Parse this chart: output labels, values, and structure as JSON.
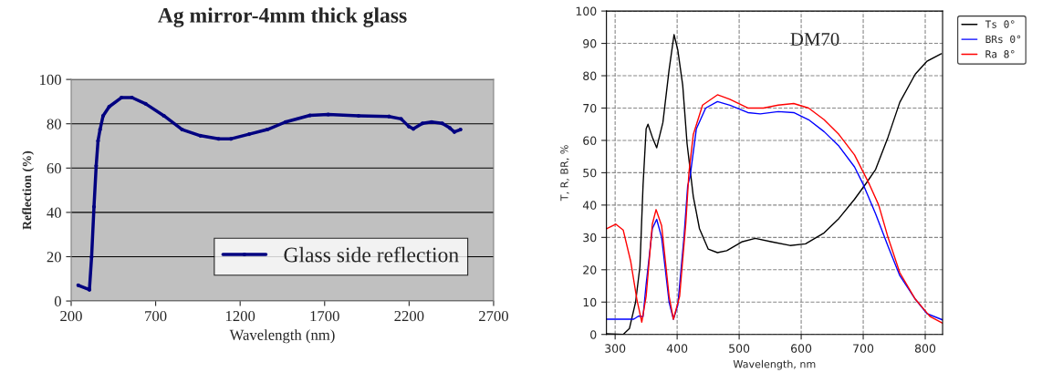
{
  "chart_data": [
    {
      "type": "line",
      "title": "Ag mirror-4mm thick glass",
      "xlabel": "Wavelength (nm)",
      "ylabel": "Reflection (%)",
      "xlim": [
        200,
        2700
      ],
      "xticks": [
        200,
        700,
        1200,
        1700,
        2200,
        2700
      ],
      "ylim": [
        0,
        100
      ],
      "yticks": [
        0,
        20,
        40,
        60,
        80,
        100
      ],
      "grid": "y",
      "legend": "bottom right",
      "marker": "circle",
      "line_style": "solid",
      "series": [
        {
          "name": "Glass side reflection",
          "color": "#000080",
          "x": [
            242,
            308,
            321,
            335,
            348,
            359,
            371,
            389,
            425,
            497,
            560,
            641,
            749,
            857,
            965,
            1073,
            1145,
            1253,
            1361,
            1469,
            1613,
            1721,
            1901,
            2081,
            2153,
            2198,
            2225,
            2279,
            2333,
            2396,
            2441,
            2468,
            2504
          ],
          "values": [
            7.1,
            5.1,
            19.9,
            42.5,
            61,
            72.3,
            77.4,
            83.6,
            87.7,
            91.8,
            91.8,
            89,
            83.6,
            77.4,
            74.6,
            73.2,
            73.2,
            75.3,
            77.4,
            80.8,
            83.8,
            84.2,
            83.6,
            83.3,
            82.2,
            78.8,
            77.7,
            80.2,
            80.8,
            80.2,
            78.1,
            76.3,
            77.4
          ]
        }
      ]
    },
    {
      "type": "line",
      "title": "DM70",
      "xlabel": "Wavelength, nm",
      "ylabel": "T, R, BR, %",
      "xlim": [
        286,
        828
      ],
      "xticks": [
        300,
        400,
        500,
        600,
        700,
        800
      ],
      "ylim": [
        0,
        100
      ],
      "yticks": [
        0,
        10,
        20,
        30,
        40,
        50,
        60,
        70,
        80,
        90,
        100
      ],
      "grid": true,
      "legend": "top right",
      "line_style": "solid",
      "series": [
        {
          "name": "Ts 0°",
          "color": "#000000",
          "x": [
            286,
            313,
            323,
            333,
            340,
            345,
            350,
            353,
            360,
            367,
            377,
            387,
            395,
            401,
            409,
            416,
            426,
            436,
            450,
            465,
            480,
            504,
            526,
            553,
            582,
            607,
            637,
            661,
            686,
            705,
            720,
            740,
            759,
            784,
            803,
            826
          ],
          "values": [
            0.2,
            0,
            1.8,
            10,
            21,
            46,
            63.6,
            65,
            61,
            57.7,
            65.5,
            81.8,
            92.7,
            88,
            77,
            59,
            42.7,
            32.7,
            26.4,
            25.3,
            25.9,
            28.6,
            29.7,
            28.6,
            27.5,
            28,
            31.4,
            35.9,
            41.8,
            46.8,
            51,
            61,
            71.8,
            80.5,
            84.5,
            86.8
          ]
        },
        {
          "name": "BRs 0°",
          "color": "#0000ff",
          "x": [
            286,
            330,
            338,
            345,
            350,
            360,
            367,
            375,
            387,
            394,
            401,
            411,
            417,
            421,
            431,
            446,
            465,
            485,
            514,
            534,
            563,
            588,
            612,
            637,
            661,
            686,
            700,
            720,
            740,
            759,
            784,
            803,
            828
          ],
          "values": [
            4.7,
            4.7,
            5.7,
            5.5,
            15.5,
            32.7,
            35.6,
            30,
            10,
            4.7,
            9,
            30,
            46,
            49,
            63.6,
            70,
            72,
            70.9,
            68.6,
            68.2,
            68.9,
            68.6,
            66.4,
            62.7,
            58.2,
            51.8,
            46.4,
            37.3,
            27.3,
            18.2,
            10.9,
            6.4,
            4.5
          ]
        },
        {
          "name": "Ra 8°",
          "color": "#ff0000",
          "x": [
            286,
            301,
            313,
            325,
            335,
            343,
            350,
            360,
            366,
            375,
            387,
            394,
            404,
            414,
            419,
            426,
            441,
            465,
            485,
            514,
            539,
            563,
            588,
            612,
            637,
            661,
            686,
            710,
            725,
            740,
            759,
            784,
            808,
            828
          ],
          "values": [
            32.7,
            34.1,
            32.3,
            22.7,
            10.9,
            3.8,
            11.8,
            34.1,
            38.6,
            33.6,
            11.8,
            4.7,
            11.8,
            34.5,
            50,
            61.8,
            70.9,
            74.1,
            72.7,
            70,
            70,
            70.9,
            71.4,
            70,
            66.4,
            61.8,
            55.5,
            46.4,
            40,
            30,
            19.1,
            10.9,
            5.5,
            3.5
          ]
        }
      ]
    }
  ]
}
